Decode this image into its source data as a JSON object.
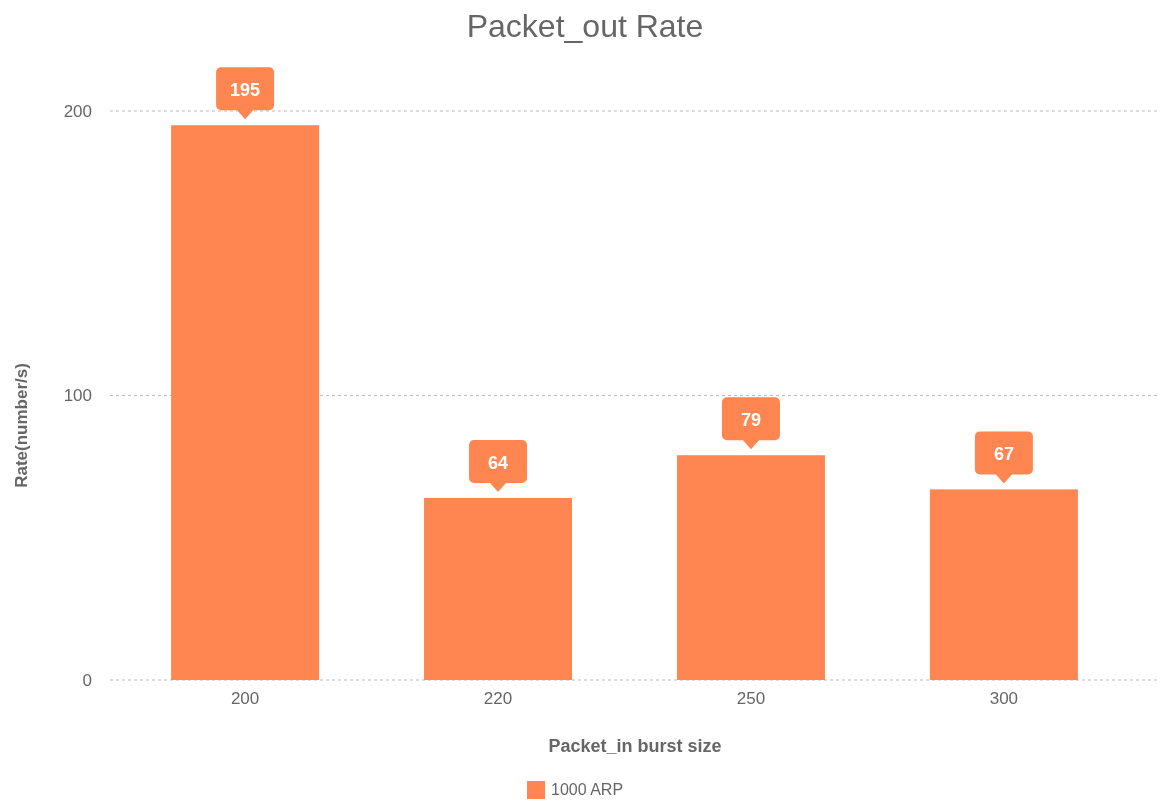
{
  "chart_data": {
    "type": "bar",
    "title": "Packet_out Rate",
    "xlabel": "Packet_in burst size",
    "ylabel": "Rate(number/s)",
    "categories": [
      "200",
      "220",
      "250",
      "300"
    ],
    "series": [
      {
        "name": "1000 ARP",
        "color": "#ff8551",
        "values": [
          195,
          64,
          79,
          67
        ]
      }
    ],
    "ylim": [
      0,
      200
    ],
    "yticks": [
      0,
      100,
      200
    ],
    "grid": "y",
    "legend": "bottom",
    "data_labels": true
  }
}
